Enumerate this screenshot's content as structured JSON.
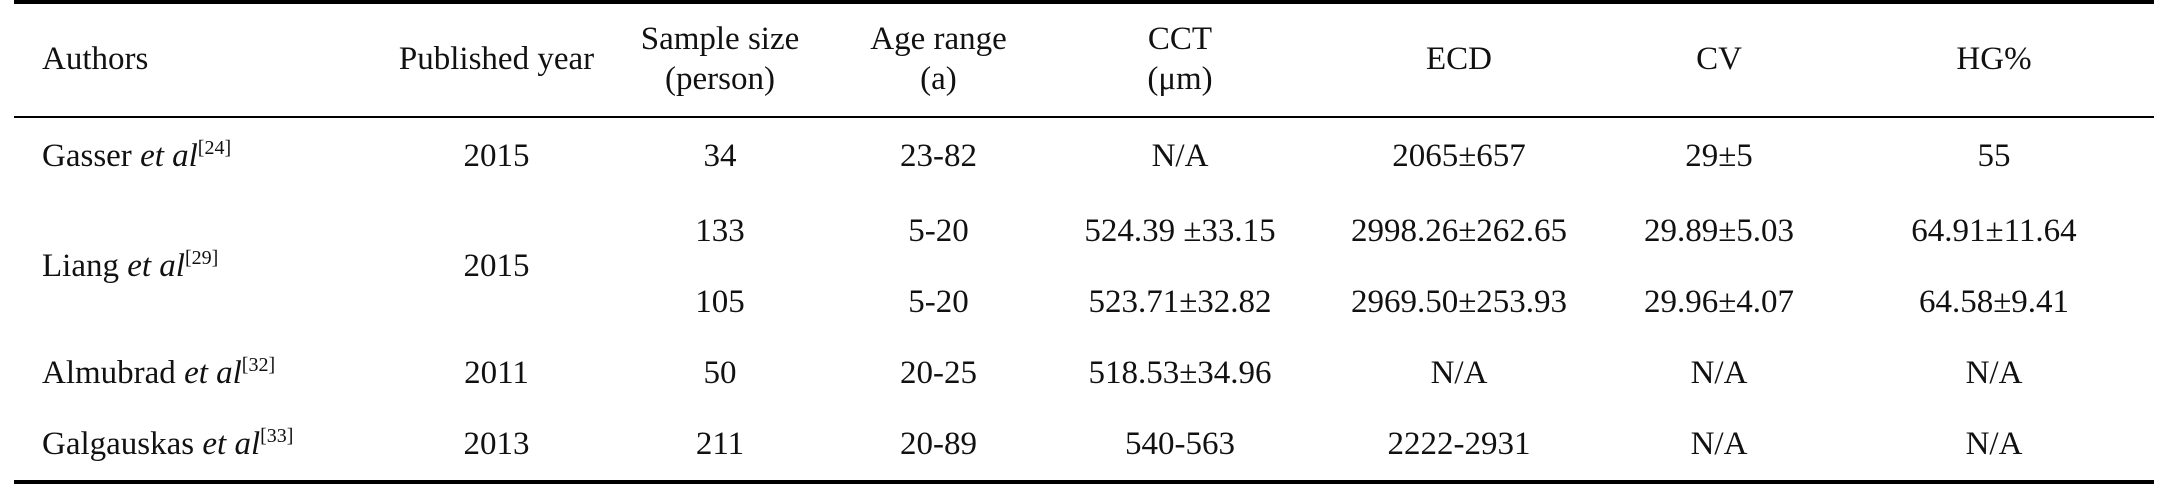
{
  "headers": {
    "authors": "Authors",
    "published_year": "Published year",
    "sample_size_l1": "Sample size",
    "sample_size_l2": "(person)",
    "age_range_l1": "Age range",
    "age_range_l2": "(a)",
    "cct_l1": "CCT",
    "cct_l2": "(μm)",
    "ecd": "ECD",
    "cv": "CV",
    "hg": "HG%"
  },
  "rows": [
    {
      "author_name": "Gasser",
      "author_etal": "et al",
      "ref": "[24]",
      "year": "2015",
      "sample": "34",
      "age": "23-82",
      "cct": "N/A",
      "ecd": "2065±657",
      "cv": "29±5",
      "hg": "55"
    },
    {
      "author_name": "Liang",
      "author_etal": "et al",
      "ref": "[29]",
      "year": "2015",
      "sample": "133",
      "age": "5-20",
      "cct": "524.39 ±33.15",
      "ecd": "2998.26±262.65",
      "cv": "29.89±5.03",
      "hg": "64.91±11.64"
    },
    {
      "sample": "105",
      "age": "5-20",
      "cct": "523.71±32.82",
      "ecd": "2969.50±253.93",
      "cv": "29.96±4.07",
      "hg": "64.58±9.41"
    },
    {
      "author_name": "Almubrad",
      "author_etal": "et al",
      "ref": "[32]",
      "year": "2011",
      "sample": "50",
      "age": "20-25",
      "cct": "518.53±34.96",
      "ecd": "N/A",
      "cv": "N/A",
      "hg": "N/A"
    },
    {
      "author_name": "Galgauskas",
      "author_etal": "et al",
      "ref": "[33]",
      "year": "2013",
      "sample": "211",
      "age": "20-89",
      "cct": "540-563",
      "ecd": "2222-2931",
      "cv": "N/A",
      "hg": "N/A"
    }
  ]
}
